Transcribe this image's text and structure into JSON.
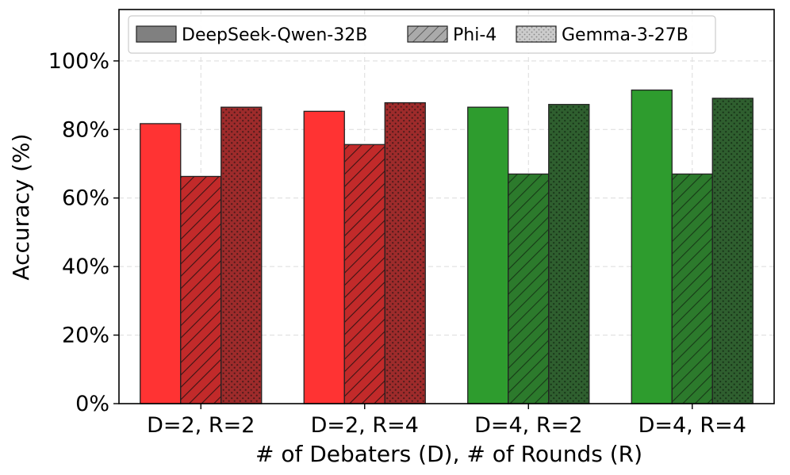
{
  "chart_data": {
    "type": "bar",
    "xlabel": "# of Debaters (D), # of Rounds (R)",
    "ylabel": "Accuracy (%)",
    "ylim": [
      0,
      115
    ],
    "yticks": [
      0,
      20,
      40,
      60,
      80,
      100
    ],
    "ytick_labels": [
      "0%",
      "20%",
      "40%",
      "60%",
      "80%",
      "100%"
    ],
    "grid": true,
    "legend_position": "top-left",
    "categories": [
      "D=2, R=2",
      "D=2, R=4",
      "D=4, R=2",
      "D=4, R=4"
    ],
    "group_colors": [
      "#ff3333",
      "#ff3333",
      "#2e9c2e",
      "#2e9c2e"
    ],
    "series_dark_colors": [
      "#9e2b2b",
      "#9e2b2b",
      "#2f5f2f",
      "#2f5f2f"
    ],
    "series": [
      {
        "name": "DeepSeek-Qwen-32B",
        "pattern": "solid",
        "legend_color": "#808080",
        "values": [
          81.7,
          85.3,
          86.5,
          91.5
        ]
      },
      {
        "name": "Phi-4",
        "pattern": "hatch",
        "legend_color": "#aaaaaa",
        "values": [
          66.3,
          75.6,
          67.0,
          67.0
        ]
      },
      {
        "name": "Gemma-3-27B",
        "pattern": "dots",
        "legend_color": "#cccccc",
        "values": [
          86.5,
          87.8,
          87.3,
          89.1
        ]
      }
    ]
  }
}
